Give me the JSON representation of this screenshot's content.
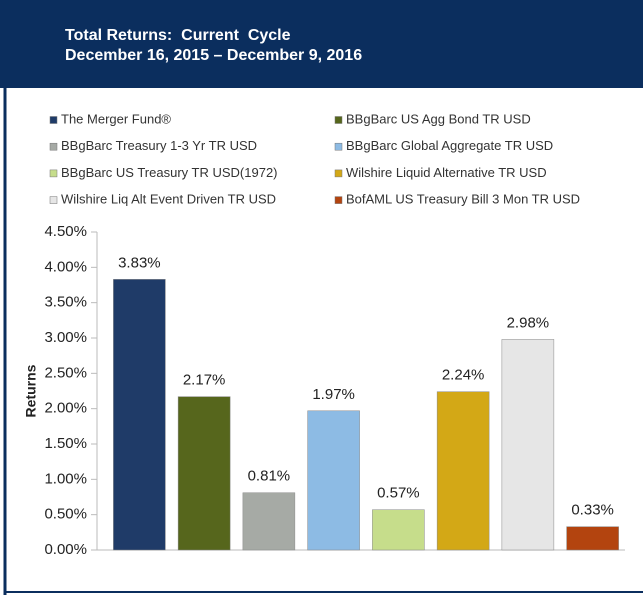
{
  "chart_data": {
    "type": "bar",
    "title": "Total Returns:  Current  Cycle",
    "subtitle": "December 16, 2015 – December 9, 2016",
    "y_label": "Returns",
    "series": [
      {
        "name": "The Merger Fund®",
        "color": "#1f3b68",
        "values": [
          3.83
        ],
        "value_labels": [
          "3.83%"
        ]
      },
      {
        "name": "BBgBarc US Agg Bond TR USD",
        "color": "#56661c",
        "values": [
          2.17
        ],
        "value_labels": [
          "2.17%"
        ]
      },
      {
        "name": "BBgBarc Treasury 1-3 Yr TR USD",
        "color": "#a6aaa5",
        "values": [
          0.81
        ],
        "value_labels": [
          "0.81%"
        ]
      },
      {
        "name": "BBgBarc Global Aggregate TR USD",
        "color": "#8dbbe4",
        "values": [
          1.97
        ],
        "value_labels": [
          "1.97%"
        ]
      },
      {
        "name": "BBgBarc US Treasury TR USD(1972)",
        "color": "#c6dd8b",
        "values": [
          0.57
        ],
        "value_labels": [
          "0.57%"
        ]
      },
      {
        "name": "Wilshire Liquid Alternative TR USD",
        "color": "#d3a816",
        "values": [
          2.24
        ],
        "value_labels": [
          "2.24%"
        ]
      },
      {
        "name": "Wilshire Liq Alt Event Driven TR USD",
        "color": "#e6e6e6",
        "values": [
          2.98
        ],
        "value_labels": [
          "2.98%"
        ]
      },
      {
        "name": "BofAML US Treasury Bill 3 Mon TR USD",
        "color": "#b3440f",
        "values": [
          0.33
        ],
        "value_labels": [
          "0.33%"
        ]
      }
    ],
    "ylim": [
      0,
      4.5
    ],
    "yticks": [
      {
        "value": 0,
        "label": "0.00%"
      },
      {
        "value": 0.5,
        "label": "0.50%"
      },
      {
        "value": 1,
        "label": "1.00%"
      },
      {
        "value": 1.5,
        "label": "1.50%"
      },
      {
        "value": 2,
        "label": "2.00%"
      },
      {
        "value": 2.5,
        "label": "2.50%"
      },
      {
        "value": 3,
        "label": "3.00%"
      },
      {
        "value": 3.5,
        "label": "3.50%"
      },
      {
        "value": 4,
        "label": "4.00%"
      },
      {
        "value": 4.5,
        "label": "4.50%"
      }
    ],
    "grid": false
  }
}
